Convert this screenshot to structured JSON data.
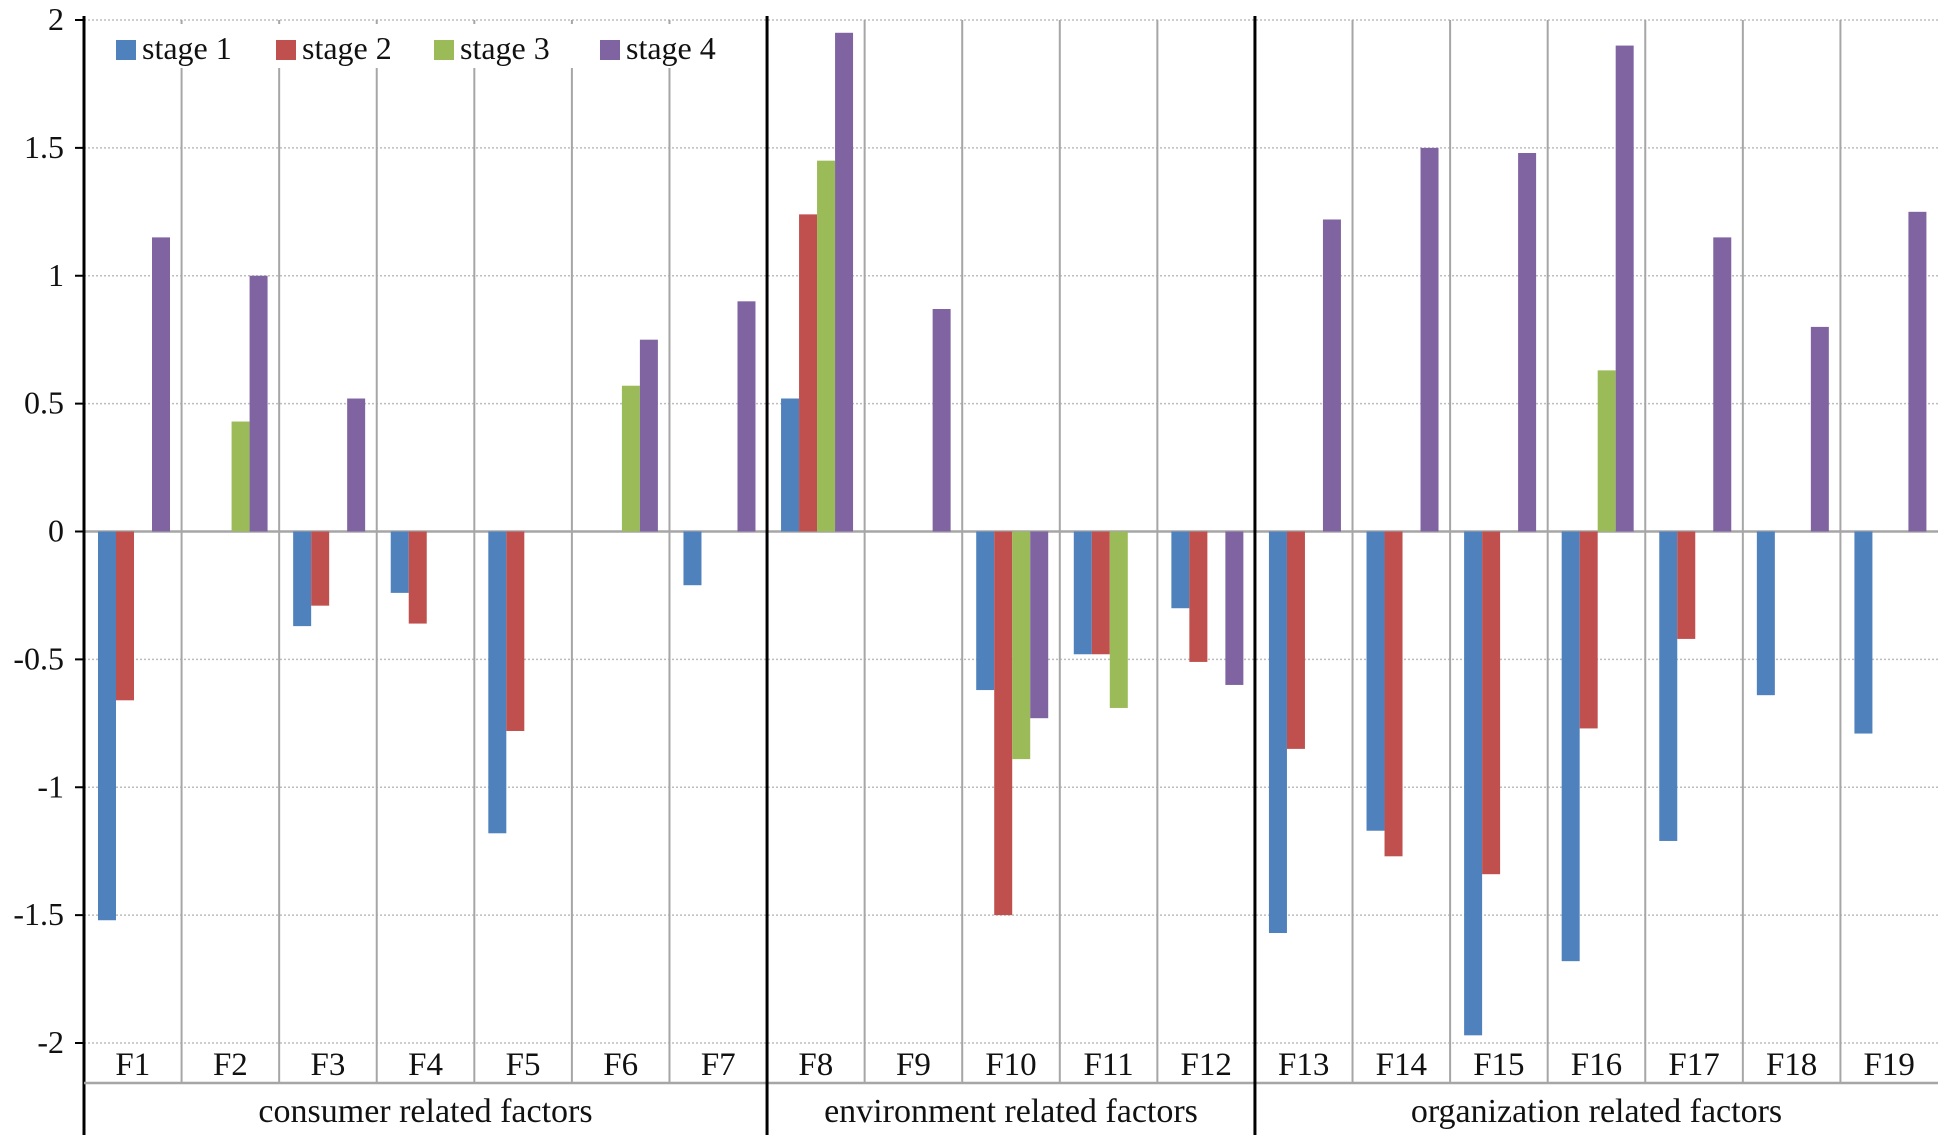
{
  "chart_data": {
    "type": "bar",
    "title": "",
    "xlabel": "",
    "ylabel": "",
    "ylim": [
      -2,
      2
    ],
    "yticks": [
      2,
      1.5,
      1,
      0.5,
      0,
      -0.5,
      -1,
      -1.5,
      -2
    ],
    "grid": true,
    "legend_position": "top-left",
    "categories": [
      "F1",
      "F2",
      "F3",
      "F4",
      "F5",
      "F6",
      "F7",
      "F8",
      "F9",
      "F10",
      "F11",
      "F12",
      "F13",
      "F14",
      "F15",
      "F16",
      "F17",
      "F18",
      "F19"
    ],
    "groups": [
      {
        "label": "consumer related factors",
        "categories": [
          "F1",
          "F2",
          "F3",
          "F4",
          "F5",
          "F6",
          "F7"
        ]
      },
      {
        "label": "environment related factors",
        "categories": [
          "F8",
          "F9",
          "F10",
          "F11",
          "F12"
        ]
      },
      {
        "label": "organization related factors",
        "categories": [
          "F13",
          "F14",
          "F15",
          "F16",
          "F17",
          "F18",
          "F19"
        ]
      }
    ],
    "series": [
      {
        "name": "stage 1",
        "color": "#4f81bd",
        "values": [
          -1.52,
          0,
          -0.37,
          -0.24,
          -1.18,
          0,
          -0.21,
          0.52,
          0,
          -0.62,
          -0.48,
          -0.3,
          -1.57,
          -1.17,
          -1.97,
          -1.68,
          -1.21,
          -0.64,
          -0.79
        ]
      },
      {
        "name": "stage 2",
        "color": "#c0504d",
        "values": [
          -0.66,
          0,
          -0.29,
          -0.36,
          -0.78,
          0,
          0,
          1.24,
          0,
          -1.5,
          -0.48,
          -0.51,
          -0.85,
          -1.27,
          -1.34,
          -0.77,
          -0.42,
          0,
          0
        ]
      },
      {
        "name": "stage 3",
        "color": "#9bbb59",
        "values": [
          0,
          0.43,
          0,
          0,
          0,
          0.57,
          0,
          1.45,
          0,
          -0.89,
          -0.69,
          0,
          0,
          0,
          0,
          0.63,
          0,
          0,
          0
        ]
      },
      {
        "name": "stage 4",
        "color": "#8064a2",
        "values": [
          1.15,
          1.0,
          0.52,
          0,
          0,
          0.75,
          0.9,
          1.95,
          0.87,
          -0.73,
          0,
          -0.6,
          1.22,
          1.5,
          1.48,
          1.9,
          1.15,
          0.8,
          1.25
        ]
      }
    ]
  }
}
